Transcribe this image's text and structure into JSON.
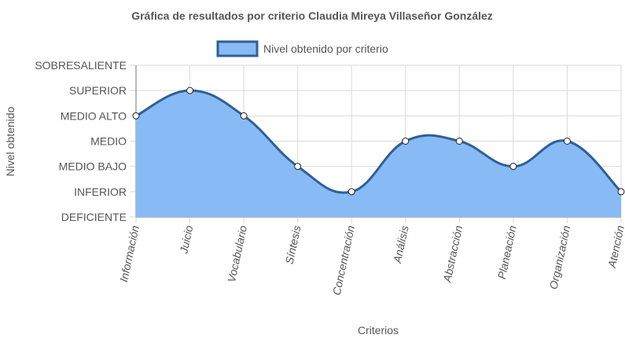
{
  "chart_data": {
    "type": "area",
    "title": "Gráfica de resultados por criterio Claudia Mireya Villaseñor González",
    "xlabel": "Criterios",
    "ylabel": "Nivel obtenido",
    "categories": [
      "Información",
      "Juicio",
      "Vocabulario",
      "Síntesis",
      "Concentración",
      "Análisis",
      "Abstracción",
      "Planeación",
      "Organización",
      "Atención"
    ],
    "y_levels": [
      "DEFICIENTE",
      "INFERIOR",
      "MEDIO BAJO",
      "MEDIO",
      "MEDIO ALTO",
      "SUPERIOR",
      "SOBRESALIENTE"
    ],
    "ylim": [
      0,
      6
    ],
    "series": [
      {
        "name": "Nivel obtenido por criterio",
        "values": [
          4,
          5,
          4,
          2,
          1,
          3,
          3,
          2,
          3,
          1
        ],
        "fill": "#88bbf6",
        "stroke": "#2f5f96"
      }
    ],
    "legend_position": "top",
    "grid": true
  }
}
